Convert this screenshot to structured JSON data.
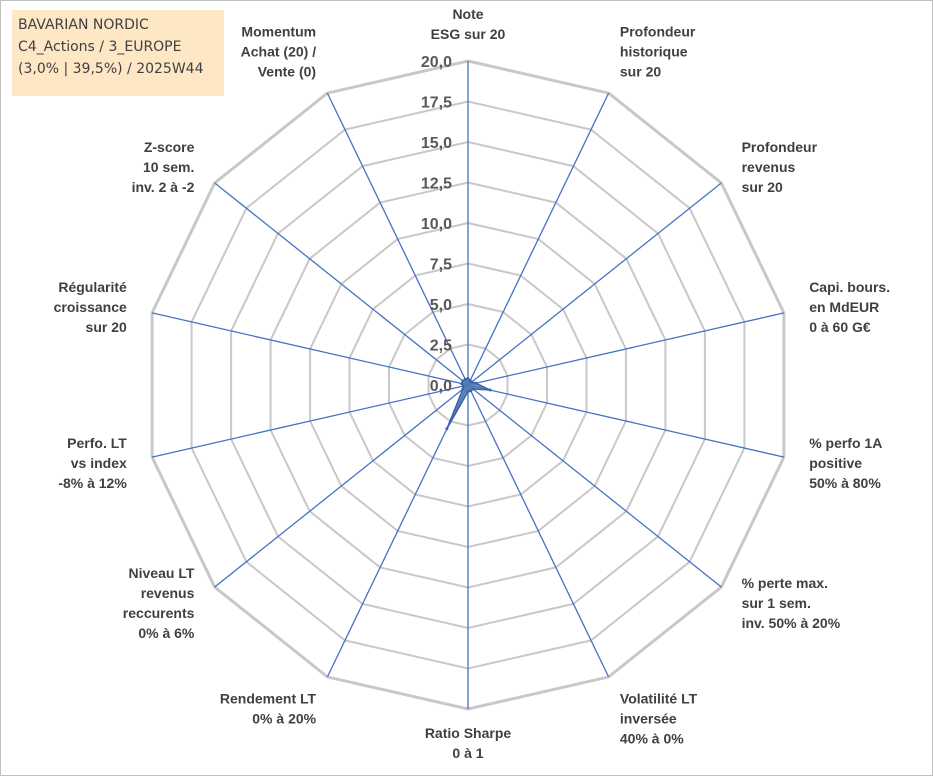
{
  "header": {
    "line1": "BAVARIAN NORDIC",
    "line2": "C4_Actions / 3_EUROPE",
    "line3": "(3,0% | 39,5%) / 2025W44"
  },
  "colors": {
    "grid": "#c8c8c8",
    "axis": "#4472c4",
    "fill": "#4f7ab3",
    "stroke": "#3a64a8"
  },
  "chart_data": {
    "type": "radar",
    "rlim": [
      0,
      20
    ],
    "tick_labels": [
      "0,0",
      "2,5",
      "5,0",
      "7,5",
      "10,0",
      "12,5",
      "15,0",
      "17,5",
      "20,0"
    ],
    "grid": true,
    "legend": "none",
    "axes": [
      {
        "label": [
          "Note",
          "ESG sur 20"
        ],
        "value": 0.4
      },
      {
        "label": [
          "Profondeur",
          "historique",
          "sur 20"
        ],
        "value": 0.3
      },
      {
        "label": [
          "Profondeur",
          "revenus",
          "sur 20"
        ],
        "value": 0.3
      },
      {
        "label": [
          "Capi. bours.",
          "en MdEUR",
          "0 à 60 G€"
        ],
        "value": 0.5
      },
      {
        "label": [
          "% perfo 1A",
          "positive",
          "50% à 80%"
        ],
        "value": 1.4
      },
      {
        "label": [
          "% perte max.",
          "sur 1 sem.",
          "inv. 50% à 20%"
        ],
        "value": 0.4
      },
      {
        "label": [
          "Volatilité LT",
          "inversée",
          "40% à 0%"
        ],
        "value": 0.4
      },
      {
        "label": [
          "Ratio Sharpe",
          "0 à 1"
        ],
        "value": 0.4
      },
      {
        "label": [
          "Rendement LT",
          "0% à 20%"
        ],
        "value": 3.0
      },
      {
        "label": [
          "Niveau LT",
          "revenus",
          "reccurents",
          "0% à 6%"
        ],
        "value": 0.4
      },
      {
        "label": [
          "Perfo. LT",
          "vs index",
          "-8% à 12%"
        ],
        "value": 0.3
      },
      {
        "label": [
          "Régularité",
          "croissance",
          "sur 20"
        ],
        "value": 0.4
      },
      {
        "label": [
          "Z-score",
          "10 sem.",
          "inv. 2 à -2"
        ],
        "value": 0.4
      },
      {
        "label": [
          "Momentum",
          "Achat (20) /",
          "Vente (0)"
        ],
        "value": 0.4
      }
    ]
  }
}
